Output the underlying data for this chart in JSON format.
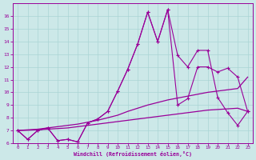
{
  "xlabel": "Windchill (Refroidissement éolien,°C)",
  "x": [
    0,
    1,
    2,
    3,
    4,
    5,
    6,
    7,
    8,
    9,
    10,
    11,
    12,
    13,
    14,
    15,
    16,
    17,
    18,
    19,
    20,
    21,
    22,
    23
  ],
  "jagged1": [
    7.0,
    6.3,
    7.0,
    7.2,
    6.2,
    6.3,
    6.1,
    7.6,
    7.9,
    8.5,
    10.1,
    11.8,
    13.8,
    16.3,
    14.0,
    16.5,
    9.0,
    9.5,
    12.0,
    12.0,
    11.6,
    11.9,
    11.2,
    8.5
  ],
  "jagged2": [
    7.0,
    6.3,
    7.0,
    7.2,
    6.2,
    6.3,
    6.1,
    7.6,
    7.9,
    8.5,
    10.1,
    11.8,
    13.8,
    16.3,
    14.0,
    16.5,
    12.9,
    12.0,
    13.3,
    13.3,
    9.6,
    8.4,
    7.4,
    8.5
  ],
  "smooth1": [
    7.0,
    7.05,
    7.1,
    7.2,
    7.3,
    7.4,
    7.5,
    7.65,
    7.8,
    8.0,
    8.2,
    8.5,
    8.75,
    9.0,
    9.2,
    9.4,
    9.55,
    9.7,
    9.85,
    10.0,
    10.1,
    10.2,
    10.3,
    11.2
  ],
  "smooth2": [
    7.0,
    7.02,
    7.05,
    7.1,
    7.15,
    7.2,
    7.3,
    7.4,
    7.5,
    7.6,
    7.7,
    7.8,
    7.9,
    8.0,
    8.1,
    8.2,
    8.3,
    8.4,
    8.5,
    8.6,
    8.65,
    8.7,
    8.75,
    8.5
  ],
  "line_color": "#990099",
  "bg_color": "#cce8e8",
  "grid_color": "#aad4d4",
  "ylim": [
    6,
    17
  ],
  "xlim": [
    -0.5,
    23.5
  ],
  "yticks": [
    6,
    7,
    8,
    9,
    10,
    11,
    12,
    13,
    14,
    15,
    16
  ],
  "xticks": [
    0,
    1,
    2,
    3,
    4,
    5,
    6,
    7,
    8,
    9,
    10,
    11,
    12,
    13,
    14,
    15,
    16,
    17,
    18,
    19,
    20,
    21,
    22,
    23
  ]
}
